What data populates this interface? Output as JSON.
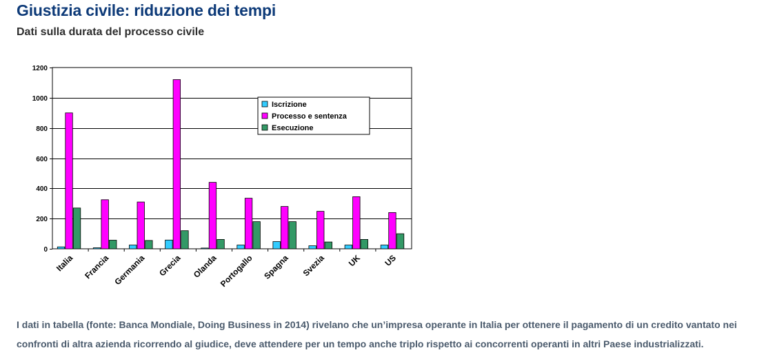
{
  "header": {
    "title": "Giustizia civile: riduzione dei tempi",
    "subtitle": "Dati sulla durata del processo civile"
  },
  "chart_data": {
    "type": "bar",
    "title": "",
    "xlabel": "",
    "ylabel": "",
    "ylim": [
      0,
      1200
    ],
    "yticks": [
      0,
      200,
      400,
      600,
      800,
      1000,
      1200
    ],
    "grid": true,
    "legend_position": "top-center",
    "categories": [
      "Italia",
      "Francia",
      "Germania",
      "Grecia",
      "Olanda",
      "Portogallo",
      "Spagna",
      "Svezia",
      "UK",
      "US"
    ],
    "series": [
      {
        "name": "Iscrizione",
        "color": "#33ccff",
        "values": [
          13,
          7,
          25,
          58,
          5,
          25,
          48,
          20,
          25,
          25
        ]
      },
      {
        "name": "Processo e sentenza",
        "color": "#ff00ff",
        "values": [
          900,
          325,
          310,
          1120,
          440,
          335,
          280,
          248,
          345,
          240
        ]
      },
      {
        "name": "Esecuzione",
        "color": "#339966",
        "values": [
          270,
          57,
          55,
          120,
          62,
          180,
          180,
          45,
          62,
          100
        ]
      }
    ]
  },
  "body": {
    "paragraph": "I dati in tabella (fonte: Banca Mondiale, Doing Business in 2014) rivelano che un’impresa operante in Italia per ottenere il pagamento di un credito vantato nei confronti di altra azienda ricorrendo al giudice, deve attendere per un tempo anche triplo rispetto ai concorrenti operanti in altri Paese industrializzati."
  }
}
